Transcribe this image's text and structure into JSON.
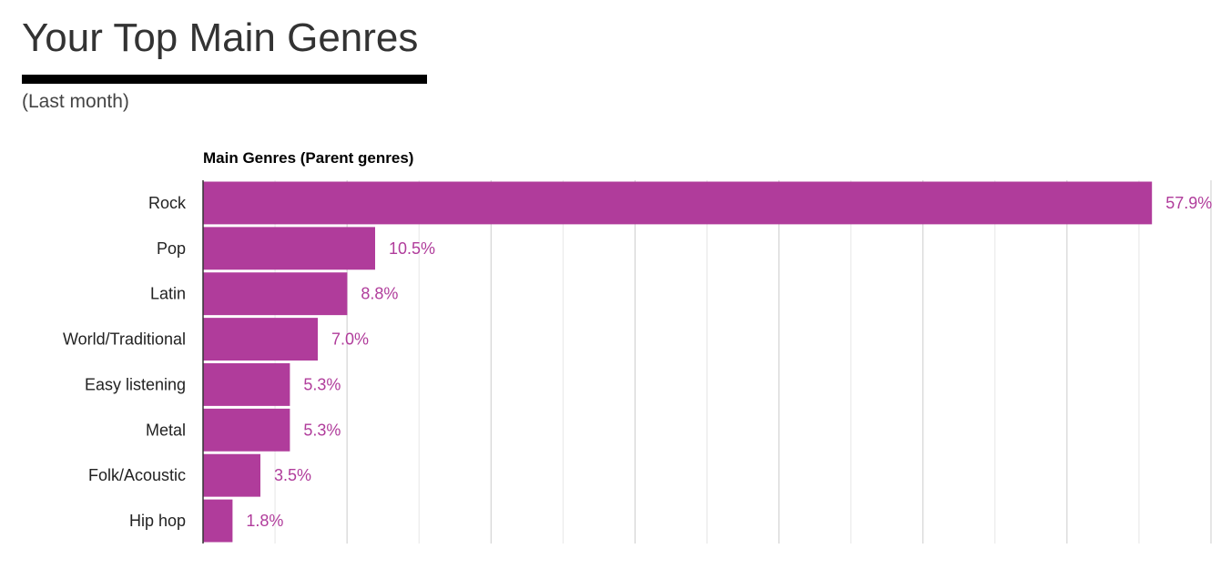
{
  "header": {
    "title": "Your Top Main Genres",
    "subtitle": "(Last month)"
  },
  "colors": {
    "bar": "#b03c9b",
    "value_label": "#b03c9b",
    "grid": "#e6e6e6",
    "grid_major": "#cccccc",
    "axis": "#333333"
  },
  "chart_data": {
    "type": "bar",
    "orientation": "horizontal",
    "title": "Main Genres (Parent genres)",
    "categories": [
      "Rock",
      "Pop",
      "Latin",
      "World/Traditional",
      "Easy listening",
      "Metal",
      "Folk/Acoustic",
      "Hip hop"
    ],
    "values": [
      57.9,
      10.5,
      8.8,
      7.0,
      5.3,
      5.3,
      3.5,
      1.8
    ],
    "value_labels": [
      "57.9%",
      "10.5%",
      "8.8%",
      "7.0%",
      "5.3%",
      "5.3%",
      "3.5%",
      "1.8%"
    ],
    "xlim": [
      0,
      61.5
    ],
    "grid": true,
    "legend": "none"
  }
}
